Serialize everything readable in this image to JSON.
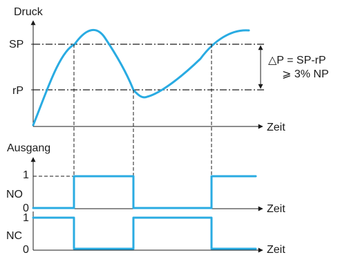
{
  "pressure_chart": {
    "y_axis_label": "Druck",
    "setpoint_label": "SP",
    "reset_label": "rP",
    "time_label": "Zeit",
    "hysteresis_formula": "△P = SP-rP",
    "hysteresis_condition": "⩾ 3% NP"
  },
  "output_section": {
    "title": "Ausgang",
    "no_chart": {
      "name": "NO",
      "high_label": "1",
      "low_label": "0",
      "time_label": "Zeit"
    },
    "nc_chart": {
      "name": "NC",
      "high_label": "1",
      "low_label": "0",
      "time_label": "Zeit"
    }
  },
  "colors": {
    "signal": "#29abe2",
    "axes": "#1a1a1a"
  }
}
